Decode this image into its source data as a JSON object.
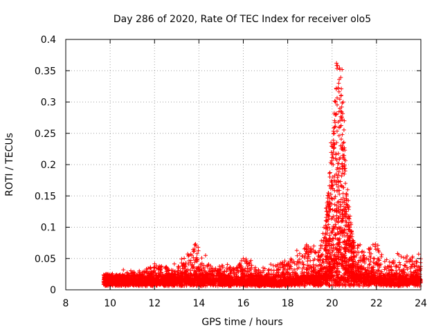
{
  "chart_data": {
    "type": "scatter",
    "title": "Day 286 of 2020, Rate Of TEC Index for receiver olo5",
    "xlabel": "GPS time / hours",
    "ylabel": "ROTI / TECUs",
    "xlim": [
      8,
      24
    ],
    "ylim": [
      0,
      0.4
    ],
    "x_ticks": [
      "8",
      "10",
      "12",
      "14",
      "16",
      "18",
      "20",
      "22",
      "24"
    ],
    "y_ticks": [
      "0",
      "0.05",
      "0.1",
      "0.15",
      "0.2",
      "0.25",
      "0.3",
      "0.35",
      "0.4"
    ],
    "grid": true,
    "marker": "plus",
    "color": "#ff0000",
    "profile": [
      [
        9.7,
        0.012,
        0.025
      ],
      [
        10.5,
        0.012,
        0.028
      ],
      [
        11.3,
        0.012,
        0.03
      ],
      [
        12.2,
        0.012,
        0.042
      ],
      [
        13.0,
        0.012,
        0.038
      ],
      [
        13.8,
        0.012,
        0.073
      ],
      [
        14.5,
        0.012,
        0.04
      ],
      [
        15.5,
        0.012,
        0.035
      ],
      [
        16.0,
        0.012,
        0.05
      ],
      [
        16.8,
        0.01,
        0.035
      ],
      [
        17.5,
        0.01,
        0.04
      ],
      [
        18.0,
        0.012,
        0.048
      ],
      [
        18.8,
        0.014,
        0.072
      ],
      [
        19.5,
        0.016,
        0.075
      ],
      [
        19.8,
        0.02,
        0.15
      ],
      [
        20.0,
        0.03,
        0.24
      ],
      [
        20.2,
        0.04,
        0.365
      ],
      [
        20.4,
        0.04,
        0.355
      ],
      [
        20.6,
        0.03,
        0.21
      ],
      [
        20.8,
        0.025,
        0.12
      ],
      [
        21.0,
        0.02,
        0.08
      ],
      [
        21.5,
        0.018,
        0.06
      ],
      [
        22.0,
        0.015,
        0.075
      ],
      [
        22.5,
        0.012,
        0.045
      ],
      [
        23.0,
        0.012,
        0.055
      ],
      [
        23.5,
        0.012,
        0.055
      ],
      [
        24.0,
        0.012,
        0.055
      ]
    ],
    "points": [
      [
        20.2,
        0.362
      ],
      [
        20.25,
        0.358
      ],
      [
        20.45,
        0.352
      ],
      [
        20.3,
        0.33
      ],
      [
        20.4,
        0.31
      ],
      [
        20.5,
        0.3
      ],
      [
        20.15,
        0.28
      ],
      [
        20.35,
        0.29
      ],
      [
        20.55,
        0.27
      ],
      [
        20.1,
        0.25
      ],
      [
        20.45,
        0.23
      ],
      [
        19.95,
        0.235
      ],
      [
        20.05,
        0.2
      ],
      [
        20.25,
        0.195
      ],
      [
        20.55,
        0.185
      ],
      [
        20.6,
        0.17
      ],
      [
        19.85,
        0.15
      ],
      [
        19.9,
        0.14
      ],
      [
        20.7,
        0.16
      ],
      [
        20.65,
        0.15
      ],
      [
        20.3,
        0.125
      ],
      [
        20.5,
        0.11
      ],
      [
        19.75,
        0.11
      ],
      [
        20.8,
        0.1
      ],
      [
        20.9,
        0.085
      ],
      [
        19.7,
        0.07
      ],
      [
        18.85,
        0.072
      ],
      [
        13.85,
        0.073
      ],
      [
        13.8,
        0.065
      ],
      [
        14.3,
        0.055
      ],
      [
        16.0,
        0.05
      ],
      [
        21.95,
        0.073
      ],
      [
        22.95,
        0.058
      ],
      [
        23.9,
        0.057
      ],
      [
        21.2,
        0.06
      ]
    ],
    "noise_points": 3200
  }
}
